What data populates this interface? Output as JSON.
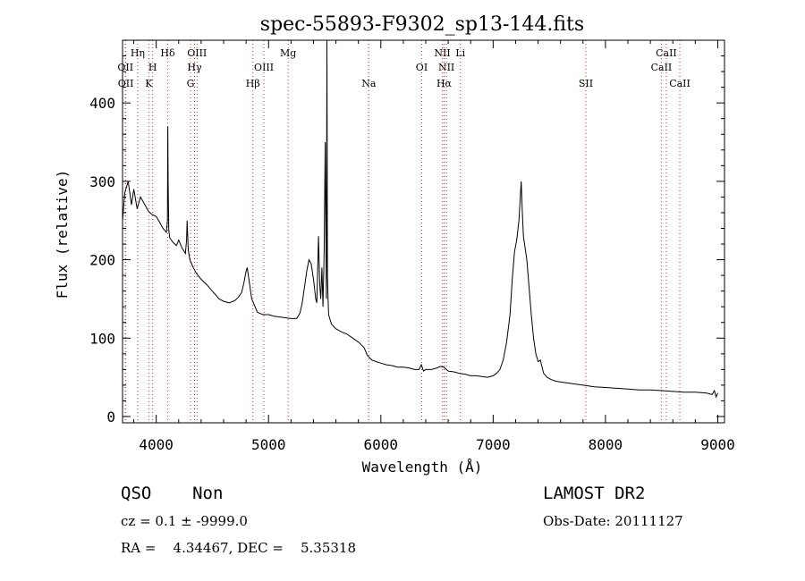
{
  "chart_data": {
    "type": "line",
    "title": "spec-55893-F9302_sp13-144.fits",
    "xlabel": "Wavelength (Å)",
    "ylabel": "Flux (relative)",
    "xlim": [
      3700,
      9060
    ],
    "ylim": [
      -8,
      480
    ],
    "x_ticks": [
      4000,
      5000,
      6000,
      7000,
      8000,
      9000
    ],
    "y_ticks": [
      0,
      100,
      200,
      300,
      400
    ],
    "grid": false,
    "series": [
      {
        "color": "#000000",
        "x": [
          3700,
          3720,
          3750,
          3780,
          3800,
          3830,
          3860,
          3900,
          3930,
          3960,
          4000,
          4030,
          4060,
          4090,
          4100,
          4103,
          4106,
          4112,
          4120,
          4150,
          4180,
          4200,
          4230,
          4260,
          4270,
          4275,
          4285,
          4300,
          4330,
          4360,
          4400,
          4450,
          4500,
          4530,
          4560,
          4600,
          4650,
          4700,
          4730,
          4760,
          4780,
          4800,
          4810,
          4830,
          4850,
          4880,
          4900,
          4950,
          5000,
          5050,
          5100,
          5150,
          5200,
          5250,
          5280,
          5300,
          5320,
          5340,
          5360,
          5380,
          5400,
          5420,
          5430,
          5445,
          5455,
          5465,
          5475,
          5485,
          5495,
          5505,
          5515,
          5520,
          5525,
          5530,
          5535,
          5545,
          5560,
          5600,
          5650,
          5700,
          5750,
          5800,
          5850,
          5880,
          5920,
          5960,
          6000,
          6050,
          6100,
          6150,
          6200,
          6250,
          6300,
          6340,
          6360,
          6380,
          6400,
          6450,
          6500,
          6530,
          6560,
          6600,
          6650,
          6700,
          6750,
          6800,
          6850,
          6900,
          6950,
          7000,
          7030,
          7060,
          7090,
          7120,
          7150,
          7170,
          7190,
          7210,
          7230,
          7250,
          7260,
          7270,
          7285,
          7300,
          7320,
          7340,
          7360,
          7380,
          7400,
          7420,
          7450,
          7480,
          7520,
          7560,
          7600,
          7700,
          7800,
          7900,
          8000,
          8100,
          8200,
          8300,
          8400,
          8500,
          8600,
          8700,
          8800,
          8900,
          8950,
          8970,
          8985,
          9000
        ],
        "y": [
          250,
          285,
          300,
          270,
          290,
          265,
          280,
          270,
          262,
          258,
          255,
          248,
          240,
          235,
          250,
          370,
          300,
          238,
          228,
          222,
          218,
          225,
          215,
          208,
          225,
          250,
          212,
          200,
          190,
          182,
          175,
          168,
          160,
          155,
          150,
          147,
          145,
          148,
          152,
          158,
          170,
          185,
          190,
          170,
          150,
          140,
          133,
          130,
          130,
          128,
          127,
          126,
          125,
          125,
          132,
          145,
          165,
          185,
          200,
          195,
          175,
          150,
          145,
          230,
          170,
          150,
          190,
          140,
          210,
          350,
          150,
          480,
          180,
          150,
          130,
          125,
          118,
          112,
          108,
          105,
          100,
          95,
          88,
          78,
          72,
          70,
          68,
          66,
          65,
          63,
          63,
          62,
          60,
          60,
          66,
          58,
          60,
          60,
          62,
          64,
          63,
          58,
          57,
          55,
          54,
          52,
          52,
          51,
          50,
          52,
          55,
          60,
          72,
          95,
          130,
          175,
          210,
          225,
          250,
          300,
          260,
          230,
          215,
          200,
          165,
          130,
          100,
          80,
          70,
          72,
          55,
          50,
          47,
          45,
          44,
          42,
          40,
          38,
          37,
          36,
          35,
          34,
          34,
          33,
          32,
          31,
          31,
          30,
          28,
          33,
          25,
          30
        ]
      }
    ],
    "line_markers": [
      {
        "label": "Hη",
        "x": 3835,
        "row": 0
      },
      {
        "label": "Hδ",
        "x": 4102,
        "row": 0
      },
      {
        "label": "OIII",
        "x": 4363,
        "row": 0
      },
      {
        "label": "Mg",
        "x": 5175,
        "row": 0
      },
      {
        "label": "NII",
        "x": 6548,
        "row": 0
      },
      {
        "label": "Li",
        "x": 6708,
        "row": 0
      },
      {
        "label": "CaII",
        "x": 8542,
        "row": 0
      },
      {
        "label": "OII",
        "x": 3726,
        "row": 1
      },
      {
        "label": "H",
        "x": 3968,
        "row": 1
      },
      {
        "label": "Hγ",
        "x": 4341,
        "row": 1
      },
      {
        "label": "OIII",
        "x": 4959,
        "row": 1
      },
      {
        "label": "OI",
        "x": 6364,
        "row": 1
      },
      {
        "label": "NII",
        "x": 6584,
        "row": 1
      },
      {
        "label": "CaII",
        "x": 8498,
        "row": 1
      },
      {
        "label": "OII",
        "x": 3729,
        "row": 2
      },
      {
        "label": "K",
        "x": 3934,
        "row": 2
      },
      {
        "label": "G",
        "x": 4305,
        "row": 2
      },
      {
        "label": "Hβ",
        "x": 4861,
        "row": 2
      },
      {
        "label": "Na",
        "x": 5893,
        "row": 2
      },
      {
        "label": "Hα",
        "x": 6563,
        "row": 2
      },
      {
        "label": "SII",
        "x": 7825,
        "row": 2
      },
      {
        "label": "CaII",
        "x": 8662,
        "row": 2
      }
    ]
  },
  "info": {
    "class_line": "QSO    Non",
    "survey": "LAMOST DR2",
    "redshift_line": "cz = 0.1 ± -9999.0",
    "obs_date": "Obs-Date: 20111127",
    "coords": "RA =    4.34467, DEC =    5.35318"
  }
}
